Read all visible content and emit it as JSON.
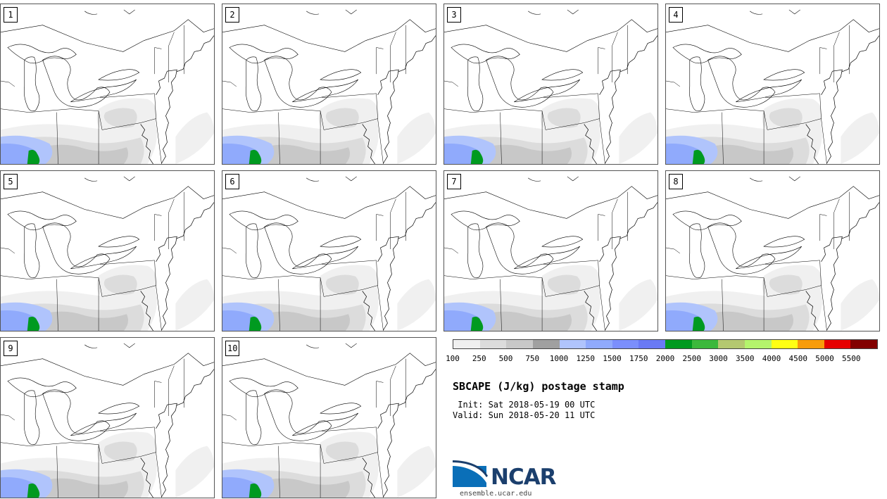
{
  "header": {
    "title": "SBCAPE (J/kg) postage stamp"
  },
  "times": {
    "init": " Init: Sat 2018-05-19 00 UTC",
    "valid": "Valid: Sun 2018-05-20 11 UTC"
  },
  "members": [
    {
      "label": "1"
    },
    {
      "label": "2"
    },
    {
      "label": "3"
    },
    {
      "label": "4"
    },
    {
      "label": "5"
    },
    {
      "label": "6"
    },
    {
      "label": "7"
    },
    {
      "label": "8"
    },
    {
      "label": "9"
    },
    {
      "label": "10"
    }
  ],
  "colorbar": {
    "colors": [
      "#f0f0f0",
      "#dcdcdc",
      "#c8c8c8",
      "#a0a0a0",
      "#b0c4fc",
      "#90aafc",
      "#7b8ffc",
      "#6a7af5",
      "#009a20",
      "#3cb83c",
      "#b4c870",
      "#b4f46c",
      "#ffff14",
      "#f89c0a",
      "#e60000",
      "#820000"
    ],
    "tick_labels": [
      "100",
      "250",
      "500",
      "750",
      "1000",
      "1250",
      "1500",
      "1750",
      "2000",
      "2500",
      "3000",
      "3500",
      "4000",
      "4500",
      "5000",
      "5500"
    ]
  },
  "branding": {
    "logo_text": "NCAR",
    "url": "ensemble.ucar.edu",
    "logo_colors": {
      "blue": "#0a6fb8",
      "navy": "#1b3f6d"
    }
  }
}
